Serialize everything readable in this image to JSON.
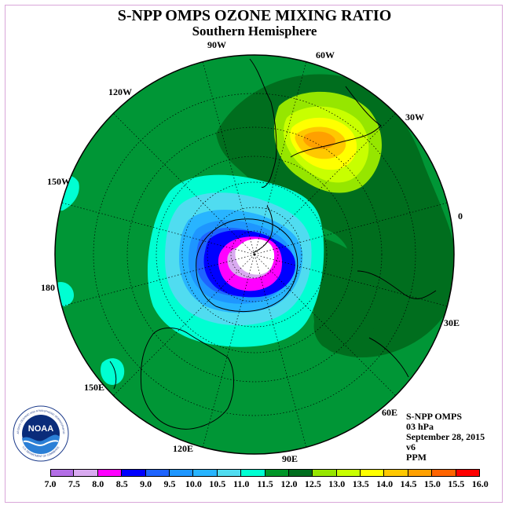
{
  "title": "S-NPP OMPS OZONE MIXING RATIO",
  "subtitle": "Southern Hemisphere",
  "longitude_labels": [
    "90W",
    "60W",
    "30W",
    "0",
    "30E",
    "60E",
    "90E",
    "120E",
    "150E",
    "180",
    "150W",
    "120W"
  ],
  "info": {
    "instrument": "S-NPP OMPS",
    "level": "03 hPa",
    "date": "September 28, 2015",
    "version": "v6",
    "units": "PPM"
  },
  "colorbar": {
    "ticks": [
      "7.0",
      "7.5",
      "8.0",
      "8.5",
      "9.0",
      "9.5",
      "10.0",
      "10.5",
      "11.0",
      "11.5",
      "12.0",
      "12.5",
      "13.0",
      "13.5",
      "14.0",
      "14.5",
      "15.0",
      "15.5",
      "16.0"
    ],
    "colors": [
      "#b36ee6",
      "#d9aaf0",
      "#ff00ff",
      "#0000ff",
      "#1e64ff",
      "#1e96ff",
      "#28b4ff",
      "#50dcf0",
      "#00ffd2",
      "#009628",
      "#006e1e",
      "#96e600",
      "#c8ff00",
      "#ffff00",
      "#ffc800",
      "#ffa000",
      "#ff6400",
      "#ff0000",
      "#8b4a2a"
    ]
  },
  "logo": {
    "text": "NOAA",
    "ring_top": "NATIONAL OCEANIC AND ATMOSPHERIC ADMINISTRATION",
    "ring_bottom": "U.S. DEPARTMENT OF COMMERCE"
  },
  "map_colors": {
    "background_field": "#009636",
    "dark_field": "#006e1e"
  }
}
